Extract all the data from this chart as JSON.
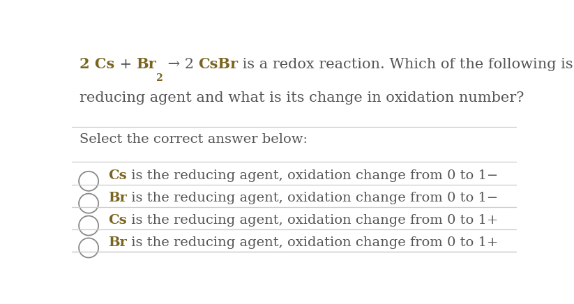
{
  "bg_color": "#ffffff",
  "title_parts_line1": [
    {
      "text": "2 Cs",
      "color": "#7a6520",
      "bold": true
    },
    {
      "text": " + ",
      "color": "#555555",
      "bold": false
    },
    {
      "text": "Br",
      "color": "#7a6520",
      "bold": true
    },
    {
      "text": "2",
      "color": "#7a6520",
      "bold": true,
      "sub": true
    },
    {
      "text": " → 2 ",
      "color": "#555555",
      "bold": false
    },
    {
      "text": "CsBr",
      "color": "#7a6520",
      "bold": true
    },
    {
      "text": " is a redox reaction. Which of the following is the",
      "color": "#555555",
      "bold": false
    }
  ],
  "title_line2": "reducing agent and what is its change in oxidation number?",
  "subtitle": "Select the correct answer below:",
  "options": [
    {
      "agent": "Cs",
      "rest": " is the reducing agent, oxidation change from 0 to 1−"
    },
    {
      "agent": "Br",
      "rest": " is the reducing agent, oxidation change from 0 to 1−"
    },
    {
      "agent": "Cs",
      "rest": " is the reducing agent, oxidation change from 0 to 1+"
    },
    {
      "agent": "Br",
      "rest": " is the reducing agent, oxidation change from 0 to 1+"
    }
  ],
  "agent_color": "#7a6520",
  "text_color": "#555555",
  "line_color": "#cccccc",
  "font_size_title": 15.0,
  "font_size_subtitle": 14.0,
  "font_size_option": 14.0,
  "circle_color": "#888888",
  "serif_font": "DejaVu Serif"
}
